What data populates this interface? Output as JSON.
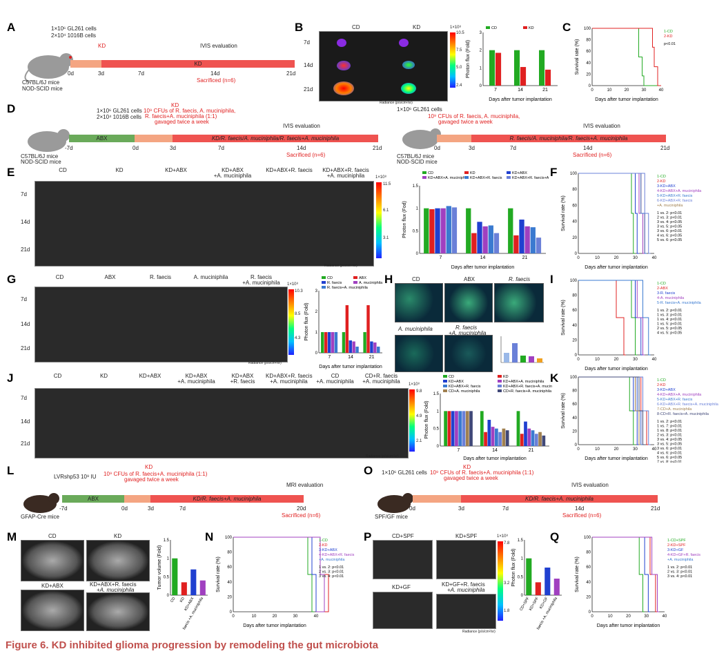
{
  "caption": "Figure 6.  KD inhibited glioma progression by remodeling the gut microbiota",
  "labels": {
    "A": "A",
    "B": "B",
    "C": "C",
    "D": "D",
    "E": "E",
    "F": "F",
    "G": "G",
    "H": "H",
    "I": "I",
    "J": "J",
    "K": "K",
    "L": "L",
    "M": "M",
    "N": "N",
    "O": "O",
    "P": "P",
    "Q": "Q"
  },
  "A": {
    "cells1": "1×10⁶ GL261 cells",
    "cells2": "2×10⁴ 1016B cells",
    "kd": "KD",
    "ivis": "IVIS evaluation",
    "bar": "KD",
    "mice1": "C57BL/6J mice",
    "mice2": "NOD-SCID mice",
    "t0": "0d",
    "t3": "3d",
    "t7": "7d",
    "t14": "14d",
    "t21": "21d",
    "sac": "Sacrificed (n=6)"
  },
  "B": {
    "cd": "CD",
    "kd": "KD",
    "d7": "7d",
    "d14": "14d",
    "d21": "21d",
    "cmax": "1×10⁸",
    "c1": "10.5",
    "c2": "7.5",
    "c3": "5.0",
    "c4": "2.4",
    "rad": "Radiance (p/s/cm²/sr)",
    "ylabel": "Photon flux (Fold)",
    "xlabel": "Days after tumor implantation",
    "ns": "ns",
    "sig": "**"
  },
  "C": {
    "ylabel": "Survival rate (%)",
    "xlabel": "Days after tumor implantation",
    "l1": "1-CD",
    "l2": "2-KD",
    "p": "p<0.01"
  },
  "D": {
    "cells1": "1×10⁶ GL261 cells",
    "cells2": "2×10⁴ 1016B cells",
    "kd": "KD",
    "cfu": "10⁹ CFUs of R. faecis, A. muciniphila,",
    "cfu2": "R. faecis+A. muciniphila (1:1)",
    "cfu3": "gavaged twice a week",
    "abx": "ABX",
    "ivis": "IVIS evaluation",
    "bar": "KD/R. faecis/A. muciniphila/R. faecis+A. muciniphila",
    "mice1": "C57BL/6J mice",
    "mice2": "NOD-SCID mice",
    "tm7": "-7d",
    "t0": "0d",
    "t3": "3d",
    "t7": "7d",
    "t14": "14d",
    "t21": "21d",
    "sac": "Sacrificed (n=6)",
    "r_cells": "1×10⁶ GL261 cells",
    "r_bar": "R. faecis/A. muciniphila/R. faecis+A. muciniphila"
  },
  "E": {
    "groups": [
      "CD",
      "KD",
      "KD+ABX",
      "KD+ABX\n+A. muciniphila",
      "KD+ABX+R. faecis",
      "KD+ABX+R. faecis\n+A. muciniphila"
    ],
    "d7": "7d",
    "d14": "14d",
    "d21": "21d",
    "cmax": "1×10⁸",
    "c1": "11.5",
    "c2": "6.1",
    "c3": "3.1",
    "rad": "Radiance (p/s/cm²/sr)",
    "ylabel": "Photon flux (Fod)",
    "xlabel": "Days after tumor implantation",
    "p1": "p<0.05",
    "p2": "p<0.01"
  },
  "F": {
    "ylabel": "Survival rate (%)",
    "xlabel": "Days after tumor implantation",
    "legend": [
      "1-CD",
      "2-KD",
      "3-KD+ABX",
      "4-KD+ABX+A. muciniphila",
      "5-KD+ABX+R. faecis",
      "6-KD+ABX+R. faecis",
      "+A. muciniphila"
    ],
    "stats": [
      "1 vs. 2: p<0.01",
      "2 vs. 3: p<0.01",
      "3 vs. 4: p<0.05",
      "3 vs. 5: p<0.05",
      "3 vs. 6: p<0.01",
      "4 vs. 6: p<0.05",
      "5 vs. 6: p<0.05"
    ]
  },
  "G": {
    "groups": [
      "CD",
      "ABX",
      "R. faecis",
      "A. muciniphila",
      "R. faecis\n+A. muciniphila"
    ],
    "d7": "7d",
    "d14": "14d",
    "d21": "21d",
    "cmax": "1×10⁸",
    "c1": "10.3",
    "c2": "8.5",
    "c3": "4.3",
    "rad": "Radiance (p/s/cm²/sr)",
    "ylabel": "Photon flux (Fold)",
    "xlabel": "Days after tumor implantation",
    "legend": [
      "CD",
      "ABX",
      "R. faecis",
      "A. muciniphila",
      "R. faecis+A. muciniphila"
    ],
    "p": "p<0.05"
  },
  "H": {
    "g1": "CD",
    "g2": "ABX",
    "g3": "R. faecis",
    "g4": "A. muciniphila",
    "g5": "R. faecis",
    "g5b": "+A. muciniphila"
  },
  "I": {
    "ylabel": "Survival rate (%)",
    "xlabel": "Days after tumor implantation",
    "legend": [
      "1-CD",
      "2-ABX",
      "3-R. faecis",
      "4-A. muciniphila",
      "5-R. faecis+A. muciniphila"
    ],
    "stats": [
      "1 vs. 2: p<0.01",
      "1 vs. 3: p<0.01",
      "1 vs. 4: p<0.01",
      "1 vs. 5: p<0.01",
      "2 vs. 5: p<0.05",
      "4 vs. 5: p<0.05"
    ]
  },
  "J": {
    "groups": [
      "CD",
      "KD",
      "KD+ABX",
      "KD+ABX\n+A. muciniphila",
      "KD+ABX\n+R. faecis",
      "KD+ABX+R. faecis\n+A. muciniphila",
      "CD\n+A. muciniphila",
      "CD+R. faecis\n+A. muciniphila"
    ],
    "d7": "7d",
    "d14": "14d",
    "d21": "21d",
    "cmax": "1×10⁸",
    "c1": "9.8",
    "c2": "4.9",
    "c3": "2.1",
    "rad": "Radiance (p/s/cm²/sr)",
    "ylabel": "Photon flux (Fold)",
    "xlabel": "Days after tumor implantation",
    "legend": [
      "CD",
      "KD",
      "KD+ABX",
      "KD+ABX+A. muciniphila",
      "KD+ABX+R. faecis",
      "KD+ABX+R. faecis+A. muciniphila",
      "CD+A. muciniphila",
      "CD+R. faecis+A. muciniphila"
    ]
  },
  "K": {
    "ylabel": "Survival rate (%)",
    "xlabel": "Days after tumor implantation",
    "legend": [
      "1-CD",
      "2-KD",
      "3-KD+ABX",
      "4-KD+ABX+A. muciniphila",
      "5-KD+ABX+R. faecis",
      "6-KD+ABX+R. faecis+A. muciniphila",
      "7-CD+A. muciniphila",
      "8-CD+R. faecis+A. muciniphila"
    ],
    "stats": [
      "1 vs. 2: p<0.01",
      "1 vs. 7: p<0.01",
      "1 vs. 8: p<0.01",
      "2 vs. 3: p<0.01",
      "3 vs. 4: p<0.05",
      "3 vs. 5: p<0.05",
      "3 vs. 6: p<0.01",
      "4 vs. 6: p<0.01",
      "5 vs. 6: p<0.05",
      "7 vs. 8: p<0.01"
    ]
  },
  "L": {
    "v1": "LVRshp53   10⁹ IU",
    "cfu": "10⁹ CFUs of R. faecis+A. muciniphila (1:1)",
    "cfu2": "gavaged twice a week",
    "kd": "KD",
    "mri": "MRI evaluation",
    "abx": "ABX",
    "bar": "KD/R. faecis+A. muciniphila",
    "mice": "GFAP-Cre mice",
    "tm7": "-7d",
    "t0": "0d",
    "t3": "3d",
    "t7": "7d",
    "t20": "20d",
    "sac": "Sacrificed (n=6)"
  },
  "O": {
    "cells": "1×10⁶ GL261 cells",
    "cfu": "10⁹ CFUs of R. faecis+A. muciniphila (1:1)",
    "cfu2": "gavaged twice a week",
    "kd": "KD",
    "ivis": "IVIS evaluation",
    "bar": "KD/R. faecis+A. muciniphila",
    "mice": "SPF/GF mice",
    "t0": "0d",
    "t3": "3d",
    "t7": "7d",
    "t14": "14d",
    "t21": "21d",
    "sac": "Sacrificed (n=6)"
  },
  "M": {
    "g1": "CD",
    "g2": "KD",
    "g3": "KD+ABX",
    "g4": "KD+ABX+R. faecis",
    "g4b": "+A. muciniphila",
    "ylabel": "Tumor volume (Fold)",
    "cats": [
      "CD",
      "KD",
      "KD+ABX",
      "KD+ABX+R. faecis +A. muciniphila"
    ]
  },
  "N": {
    "ylabel": "Survival rate (%)",
    "xlabel": "Days after tumor implantation",
    "legend": [
      "1-CD",
      "2-KD",
      "3-KD+ABX",
      "4-KD+ABX+R. faecis",
      "+A. muciniphila"
    ],
    "stats": [
      "1 vs. 2: p<0.01",
      "2 vs. 3: p<0.01",
      "3 vs. 4: p<0.01"
    ]
  },
  "P": {
    "g1": "CD+SPF",
    "g2": "KD+SPF",
    "g3": "KD+GF",
    "g4": "KD+GF+R. faecis",
    "g4b": "+A. muciniphila",
    "cmax": "1×10⁸",
    "c1": "7.8",
    "c2": "3.2",
    "c3": "1.8",
    "rad": "Radiance (p/s/cm²/sr)",
    "ylabel": "Photon flux (Fold)",
    "cats": [
      "CD+SPF",
      "KD+SPF",
      "KD+GF",
      "KD+GF+R. faecis +A. muciniphila"
    ]
  },
  "Q": {
    "ylabel": "Survival rate (%)",
    "xlabel": "Days after tumor implantation",
    "legend": [
      "1-CD+SPF",
      "2-KD+SPF",
      "3-KD+GF",
      "4-KD+GF+R. faecis",
      "+A. muciniphila"
    ],
    "stats": [
      "1 vs. 2: p<0.01",
      "2 vs. 3: p<0.01",
      "3 vs. 4: p<0.01"
    ]
  },
  "chart_data": [
    {
      "panel": "B",
      "type": "bar",
      "categories": [
        "7",
        "14",
        "21"
      ],
      "series": [
        {
          "name": "CD",
          "values": [
            2.0,
            2.0,
            2.0
          ]
        },
        {
          "name": "KD",
          "values": [
            1.85,
            1.05,
            0.9
          ]
        }
      ],
      "ylabel": "Photon flux (Fold)",
      "xlabel": "Days after tumor implantation",
      "ylim": [
        0,
        3
      ],
      "colors": [
        "#22aa22",
        "#e02020"
      ]
    },
    {
      "panel": "C",
      "type": "line",
      "series": [
        {
          "name": "1-CD",
          "x": [
            0,
            25,
            27,
            29,
            30,
            40
          ],
          "y": [
            100,
            100,
            50,
            17,
            0,
            0
          ]
        },
        {
          "name": "2-KD",
          "x": [
            0,
            33,
            35,
            36,
            38,
            40
          ],
          "y": [
            100,
            100,
            67,
            33,
            0,
            0
          ]
        }
      ],
      "ylabel": "Survival rate (%)",
      "xlabel": "Days after tumor implantation",
      "xlim": [
        0,
        40
      ],
      "ylim": [
        0,
        100
      ]
    },
    {
      "panel": "E",
      "type": "bar",
      "categories": [
        "7",
        "14",
        "21"
      ],
      "series": [
        {
          "name": "CD",
          "values": [
            1.0,
            1.0,
            1.0
          ]
        },
        {
          "name": "KD",
          "values": [
            0.98,
            0.45,
            0.4
          ]
        },
        {
          "name": "KD+ABX",
          "values": [
            1.0,
            0.7,
            0.75
          ]
        },
        {
          "name": "KD+ABX+A. muciniphila",
          "values": [
            1.0,
            0.6,
            0.6
          ]
        },
        {
          "name": "KD+ABX+R. faecis",
          "values": [
            1.05,
            0.62,
            0.58
          ]
        },
        {
          "name": "KD+ABX+R. faecis+A. muciniphila",
          "values": [
            1.02,
            0.45,
            0.35
          ]
        }
      ],
      "ylabel": "Photon flux (Fod)",
      "xlabel": "Days after tumor implantation",
      "ylim": [
        0,
        1.5
      ]
    },
    {
      "panel": "G",
      "type": "bar",
      "categories": [
        "7",
        "14",
        "21"
      ],
      "series": [
        {
          "name": "CD",
          "values": [
            1.0,
            1.0,
            1.0
          ]
        },
        {
          "name": "ABX",
          "values": [
            1.0,
            2.3,
            2.3
          ]
        },
        {
          "name": "R. faecis",
          "values": [
            1.0,
            0.6,
            0.55
          ]
        },
        {
          "name": "A. muciniphila",
          "values": [
            1.0,
            0.55,
            0.5
          ]
        },
        {
          "name": "R. faecis+A. muciniphila",
          "values": [
            1.0,
            0.3,
            0.3
          ]
        }
      ],
      "ylabel": "Photon flux (Fold)",
      "xlabel": "Days after tumor implantation",
      "ylim": [
        0,
        3
      ]
    },
    {
      "panel": "J",
      "type": "bar",
      "categories": [
        "7",
        "14",
        "21"
      ],
      "series": [
        {
          "name": "CD",
          "values": [
            1.0,
            1.0,
            1.0
          ]
        },
        {
          "name": "KD",
          "values": [
            1.0,
            0.4,
            0.35
          ]
        },
        {
          "name": "KD+ABX",
          "values": [
            1.0,
            0.75,
            0.7
          ]
        },
        {
          "name": "KD+ABX+A. muciniphila",
          "values": [
            1.0,
            0.55,
            0.5
          ]
        },
        {
          "name": "KD+ABX+R. faecis",
          "values": [
            1.0,
            0.5,
            0.45
          ]
        },
        {
          "name": "KD+ABX+R. faecis+A. muciniphila",
          "values": [
            1.0,
            0.4,
            0.35
          ]
        },
        {
          "name": "CD+A. muciniphila",
          "values": [
            1.0,
            0.5,
            0.4
          ]
        },
        {
          "name": "CD+R. faecis+A. muciniphila",
          "values": [
            1.0,
            0.45,
            0.3
          ]
        }
      ],
      "ylabel": "Photon flux (Fold)",
      "xlabel": "Days after tumor implantation",
      "ylim": [
        0,
        1.5
      ]
    },
    {
      "panel": "M",
      "type": "bar",
      "categories": [
        "CD",
        "KD",
        "KD+ABX",
        "KD+ABX+R. faecis +A. muciniphila"
      ],
      "values": [
        1.0,
        0.35,
        0.7,
        0.4
      ],
      "ylabel": "Tumor volume (Fold)",
      "ylim": [
        0,
        1.5
      ]
    },
    {
      "panel": "P",
      "type": "bar",
      "categories": [
        "CD+SPF",
        "KD+SPF",
        "KD+GF",
        "KD+GF+R. faecis +A. muciniphila"
      ],
      "values": [
        1.0,
        0.35,
        0.75,
        0.45
      ],
      "ylabel": "Photon flux (Fold)",
      "ylim": [
        0,
        1.5
      ]
    }
  ]
}
